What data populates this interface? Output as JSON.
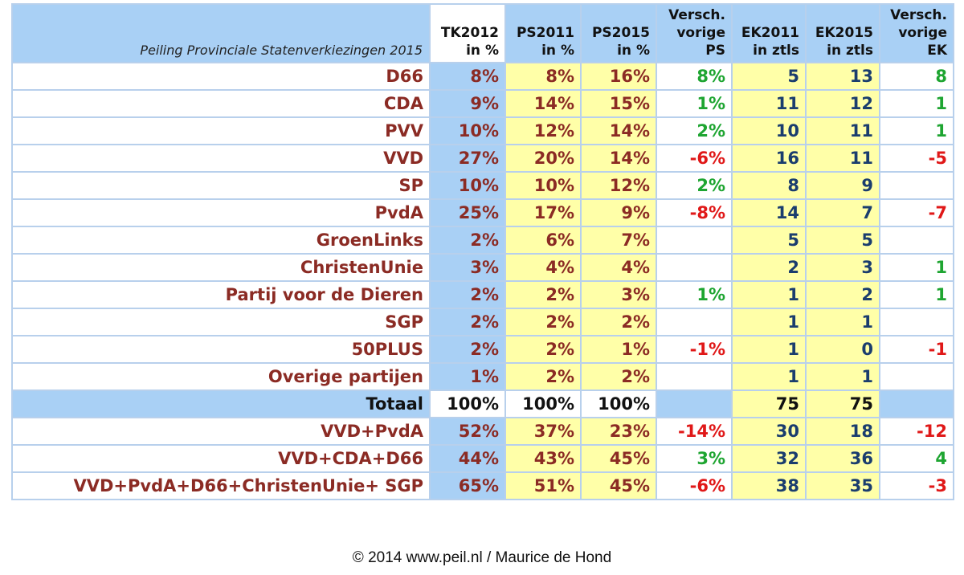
{
  "table": {
    "caption": "Peiling Provinciale Statenverkiezingen 2015",
    "headers": [
      [
        "TK2012",
        "in %"
      ],
      [
        "PS2011",
        "in  %"
      ],
      [
        "PS2015",
        "in %"
      ],
      [
        "Versch.",
        "vorige",
        "PS"
      ],
      [
        "EK2011",
        "in ztls"
      ],
      [
        "EK2015",
        "in ztls"
      ],
      [
        "Versch.",
        "vorige",
        "EK"
      ]
    ],
    "rows": [
      {
        "party": "D66",
        "tk2012": "8%",
        "ps2011": "8%",
        "ps2015": "16%",
        "diff_ps": "8%",
        "ek2011": "5",
        "ek2015": "13",
        "diff_ek": "8"
      },
      {
        "party": "CDA",
        "tk2012": "9%",
        "ps2011": "14%",
        "ps2015": "15%",
        "diff_ps": "1%",
        "ek2011": "11",
        "ek2015": "12",
        "diff_ek": "1"
      },
      {
        "party": "PVV",
        "tk2012": "10%",
        "ps2011": "12%",
        "ps2015": "14%",
        "diff_ps": "2%",
        "ek2011": "10",
        "ek2015": "11",
        "diff_ek": "1"
      },
      {
        "party": "VVD",
        "tk2012": "27%",
        "ps2011": "20%",
        "ps2015": "14%",
        "diff_ps": "-6%",
        "ek2011": "16",
        "ek2015": "11",
        "diff_ek": "-5"
      },
      {
        "party": "SP",
        "tk2012": "10%",
        "ps2011": "10%",
        "ps2015": "12%",
        "diff_ps": "2%",
        "ek2011": "8",
        "ek2015": "9",
        "diff_ek": ""
      },
      {
        "party": "PvdA",
        "tk2012": "25%",
        "ps2011": "17%",
        "ps2015": "9%",
        "diff_ps": "-8%",
        "ek2011": "14",
        "ek2015": "7",
        "diff_ek": "-7"
      },
      {
        "party": "GroenLinks",
        "tk2012": "2%",
        "ps2011": "6%",
        "ps2015": "7%",
        "diff_ps": "",
        "ek2011": "5",
        "ek2015": "5",
        "diff_ek": ""
      },
      {
        "party": "ChristenUnie",
        "tk2012": "3%",
        "ps2011": "4%",
        "ps2015": "4%",
        "diff_ps": "",
        "ek2011": "2",
        "ek2015": "3",
        "diff_ek": "1"
      },
      {
        "party": "Partij voor de Dieren",
        "tk2012": "2%",
        "ps2011": "2%",
        "ps2015": "3%",
        "diff_ps": "1%",
        "ek2011": "1",
        "ek2015": "2",
        "diff_ek": "1"
      },
      {
        "party": "SGP",
        "tk2012": "2%",
        "ps2011": "2%",
        "ps2015": "2%",
        "diff_ps": "",
        "ek2011": "1",
        "ek2015": "1",
        "diff_ek": ""
      },
      {
        "party": "50PLUS",
        "tk2012": "2%",
        "ps2011": "2%",
        "ps2015": "1%",
        "diff_ps": "-1%",
        "ek2011": "1",
        "ek2015": "0",
        "diff_ek": "-1"
      },
      {
        "party": "Overige partijen",
        "tk2012": "1%",
        "ps2011": "2%",
        "ps2015": "2%",
        "diff_ps": "",
        "ek2011": "1",
        "ek2015": "1",
        "diff_ek": ""
      }
    ],
    "total": {
      "party": "Totaal",
      "tk2012": "100%",
      "ps2011": "100%",
      "ps2015": "100%",
      "diff_ps": "",
      "ek2011": "75",
      "ek2015": "75",
      "diff_ek": ""
    },
    "coalitions": [
      {
        "party": "VVD+PvdA",
        "tk2012": "52%",
        "ps2011": "37%",
        "ps2015": "23%",
        "diff_ps": "-14%",
        "ek2011": "30",
        "ek2015": "18",
        "diff_ek": "-12"
      },
      {
        "party": "VVD+CDA+D66",
        "tk2012": "44%",
        "ps2011": "43%",
        "ps2015": "45%",
        "diff_ps": "3%",
        "ek2011": "32",
        "ek2015": "36",
        "diff_ek": "4"
      },
      {
        "party": "VVD+PvdA+D66+ChristenUnie+ SGP",
        "tk2012": "65%",
        "ps2011": "51%",
        "ps2015": "45%",
        "diff_ps": "-6%",
        "ek2011": "38",
        "ek2015": "35",
        "diff_ek": "-3"
      }
    ]
  },
  "footer": "© 2014  www.peil.nl / Maurice de Hond",
  "colors": {
    "header_blue": "#a9d0f5",
    "yellow": "#ffffa8",
    "party_red": "#8b2b24",
    "seat_navy": "#1a3d6e",
    "positive_green": "#1ea531",
    "negative_red": "#e01818"
  }
}
